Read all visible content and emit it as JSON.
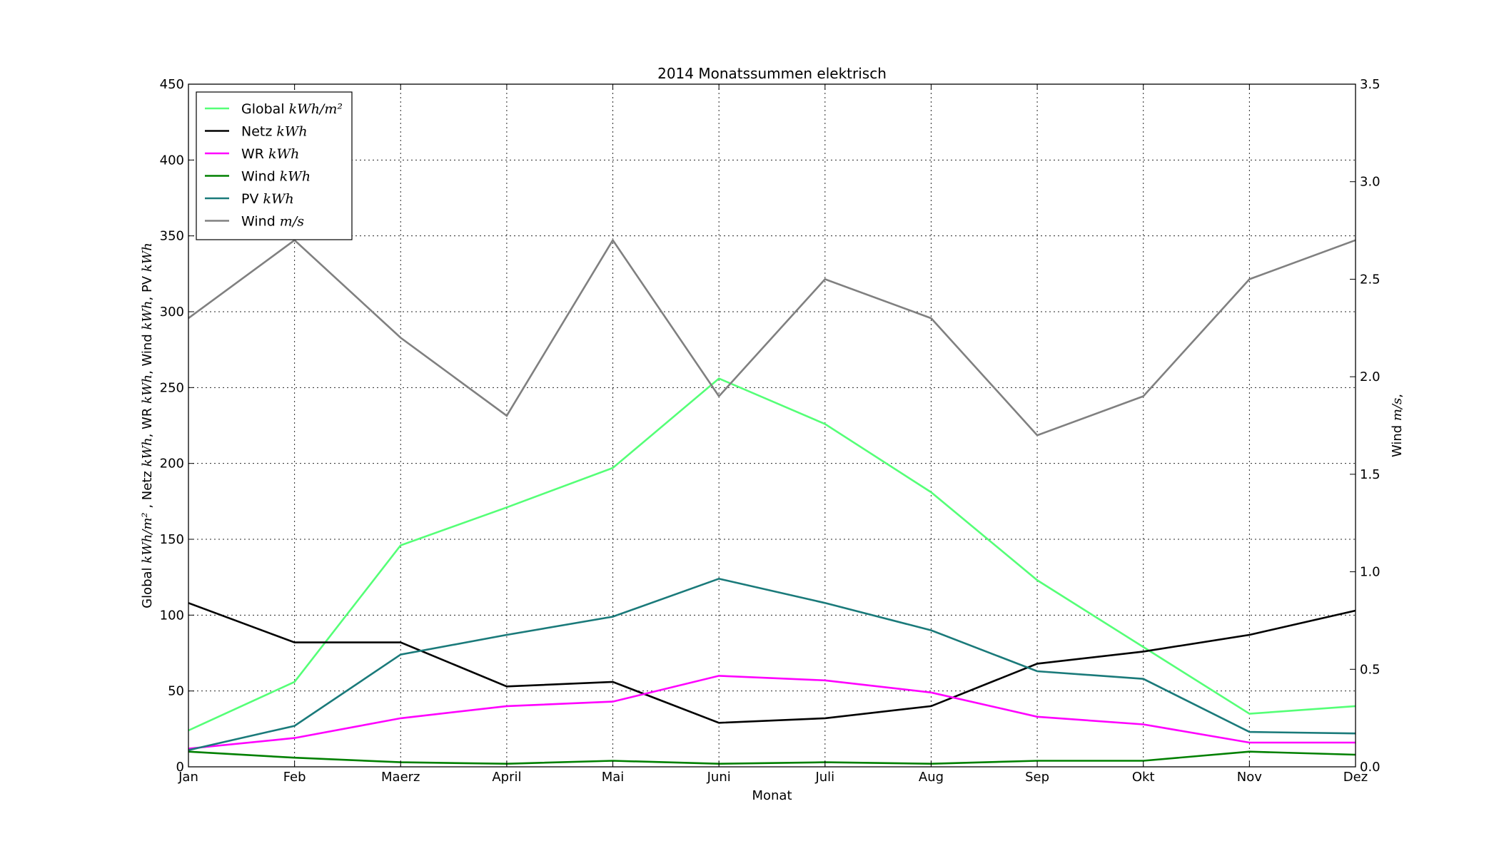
{
  "chart_data": {
    "type": "line",
    "title": "2014 Monatssummen elektrisch",
    "xlabel": "Monat",
    "ylabel_left": {
      "parts": [
        {
          "t": "Global ",
          "m": false
        },
        {
          "t": "kWh/m²",
          "m": true
        },
        {
          "t": " , Netz ",
          "m": false
        },
        {
          "t": "kWh",
          "m": true
        },
        {
          "t": ", WR ",
          "m": false
        },
        {
          "t": "kWh",
          "m": true
        },
        {
          "t": ", Wind ",
          "m": false
        },
        {
          "t": "kWh",
          "m": true
        },
        {
          "t": ", PV ",
          "m": false
        },
        {
          "t": "kWh",
          "m": true
        }
      ]
    },
    "ylabel_right": {
      "parts": [
        {
          "t": "Wind ",
          "m": false
        },
        {
          "t": "m/s",
          "m": true
        },
        {
          "t": ",",
          "m": false
        }
      ]
    },
    "categories": [
      "Jan",
      "Feb",
      "Maerz",
      "April",
      "Mai",
      "Juni",
      "Juli",
      "Aug",
      "Sep",
      "Okt",
      "Nov",
      "Dez"
    ],
    "ylim_left": [
      0,
      450
    ],
    "yticks_left": [
      "0",
      "50",
      "100",
      "150",
      "200",
      "250",
      "300",
      "350",
      "400",
      "450"
    ],
    "ylim_right": [
      0,
      3.5
    ],
    "yticks_right": [
      "0.0",
      "0.5",
      "1.0",
      "1.5",
      "2.0",
      "2.5",
      "3.0",
      "3.5"
    ],
    "grid": true,
    "legend_position": "top-left",
    "series": [
      {
        "name": "Global",
        "unit": "kWh/m²",
        "axis": "left",
        "color": "#55ff77",
        "values": [
          24,
          56,
          146,
          171,
          197,
          256,
          226,
          181,
          123,
          79,
          35,
          40
        ]
      },
      {
        "name": "Netz",
        "unit": "kWh",
        "axis": "left",
        "color": "#000000",
        "values": [
          108,
          82,
          82,
          53,
          56,
          29,
          32,
          40,
          68,
          76,
          87,
          103
        ]
      },
      {
        "name": "WR",
        "unit": "kWh",
        "axis": "left",
        "color": "#ff00ff",
        "values": [
          12,
          19,
          32,
          40,
          43,
          60,
          57,
          49,
          33,
          28,
          16,
          16
        ]
      },
      {
        "name": "Wind",
        "unit": "kWh",
        "axis": "left",
        "color": "#008000",
        "values": [
          10,
          6,
          3,
          2,
          4,
          2,
          3,
          2,
          4,
          4,
          10,
          8
        ]
      },
      {
        "name": "PV",
        "unit": "kWh",
        "axis": "left",
        "color": "#1a7a7a",
        "values": [
          11,
          27,
          74,
          87,
          99,
          124,
          108,
          90,
          63,
          58,
          23,
          22
        ]
      },
      {
        "name": "Wind",
        "unit": "m/s",
        "axis": "right",
        "color": "#808080",
        "values": [
          2.3,
          2.7,
          2.2,
          1.8,
          2.7,
          1.9,
          2.5,
          2.3,
          1.7,
          1.9,
          2.5,
          2.7
        ]
      }
    ]
  }
}
